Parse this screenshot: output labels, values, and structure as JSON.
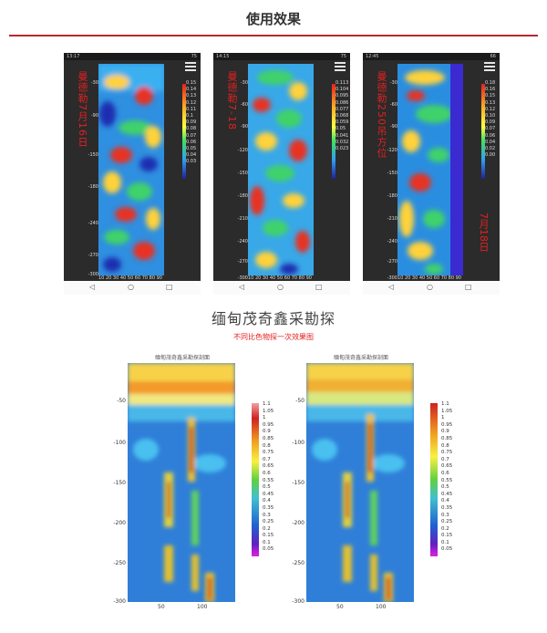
{
  "header": {
    "title": "使用效果"
  },
  "phones": [
    {
      "status_time": "13:17",
      "status_battery": "75",
      "side_label": "曼德勒7月16日",
      "side_label_2": "",
      "colorbar": [
        "0.15",
        "0.14",
        "0.13",
        "0.12",
        "0.11",
        "0.1",
        "0.09",
        "0.08",
        "0.07",
        "0.06",
        "0.05",
        "0.04",
        "0.03"
      ],
      "y_ticks": [
        "-30",
        "-90",
        "-150",
        "-180",
        "-240",
        "-270",
        "-300"
      ],
      "x_ticks": "10 20 30 40 50 60 70 80 90  110"
    },
    {
      "status_time": "14:15",
      "status_battery": "75",
      "side_label": "曼德勒7-18",
      "side_label_2": "",
      "colorbar": [
        "0.113",
        "0.104",
        "0.095",
        "0.086",
        "0.077",
        "0.068",
        "0.059",
        "0.05",
        "0.041",
        "0.032",
        "0.023"
      ],
      "y_ticks": [
        "-30",
        "-60",
        "-90",
        "-120",
        "-150",
        "-180",
        "-210",
        "-240",
        "-270",
        "-300"
      ],
      "x_ticks": "10 20 30 40 50 60 70 80 90"
    },
    {
      "status_time": "12:45",
      "status_battery": "66",
      "side_label": "曼德勒250吊方位",
      "side_label_2": "7月18日",
      "colorbar": [
        "0.18",
        "0.16",
        "0.15",
        "0.13",
        "0.12",
        "0.10",
        "0.09",
        "0.07",
        "0.06",
        "0.04",
        "0.02",
        "0.00"
      ],
      "y_ticks": [
        "-30",
        "-60",
        "-90",
        "-120",
        "-150",
        "-180",
        "-210",
        "-240",
        "-270",
        "-300"
      ],
      "x_ticks": "10 20 30 40 50 60 70 80 90  110"
    }
  ],
  "section": {
    "title": "缅甸茂奇鑫采勘探",
    "caption": "不同比色物探一次效果图"
  },
  "plots": [
    {
      "title": "缅甸茂奇鑫采勘探剖面",
      "y_ticks": [
        "-50",
        "-100",
        "-150",
        "-200",
        "-250",
        "-300"
      ],
      "x_ticks": [
        "50",
        "100"
      ],
      "legend": [
        "1.1",
        "1.05",
        "1",
        "0.95",
        "0.9",
        "0.85",
        "0.8",
        "0.75",
        "0.7",
        "0.65",
        "0.6",
        "0.55",
        "0.5",
        "0.45",
        "0.4",
        "0.35",
        "0.3",
        "0.25",
        "0.2",
        "0.15",
        "0.1",
        "0.05"
      ]
    },
    {
      "title": "缅甸茂奇鑫采勘探剖面",
      "y_ticks": [
        "-50",
        "-100",
        "-150",
        "-200",
        "-250",
        "-300"
      ],
      "x_ticks": [
        "50",
        "100"
      ],
      "legend": [
        "1.1",
        "1.05",
        "1",
        "0.95",
        "0.9",
        "0.85",
        "0.8",
        "0.75",
        "0.7",
        "0.65",
        "0.6",
        "0.55",
        "0.5",
        "0.45",
        "0.4",
        "0.35",
        "0.3",
        "0.25",
        "0.2",
        "0.15",
        "0.1",
        "0.05"
      ]
    }
  ],
  "navbar": {
    "back_icon": "◁",
    "home_icon": "○",
    "recent_icon": "□"
  }
}
